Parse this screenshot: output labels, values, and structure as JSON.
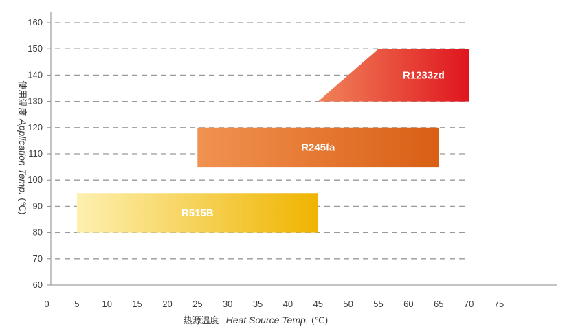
{
  "chart_data": {
    "type": "range-band",
    "xlabel_cn": "热源温度",
    "xlabel_en": "Heat Source Temp.",
    "xlabel_unit": "(℃)",
    "ylabel_cn": "使用温度",
    "ylabel_en": "Application Temp.",
    "ylabel_unit": "(℃)",
    "xlim": [
      0,
      75
    ],
    "ylim": [
      60,
      160
    ],
    "x_ticks": [
      "0",
      "5",
      "10",
      "15",
      "20",
      "25",
      "30",
      "35",
      "40",
      "45",
      "50",
      "55",
      "60",
      "65",
      "70",
      "75"
    ],
    "y_ticks": [
      "60",
      "70",
      "80",
      "90",
      "100",
      "110",
      "120",
      "130",
      "140",
      "150",
      "160"
    ],
    "grid": "horizontal dashed",
    "series": [
      {
        "name": "R1233zd",
        "polygon": [
          [
            45,
            130
          ],
          [
            55,
            150
          ],
          [
            70,
            150
          ],
          [
            70,
            130
          ]
        ],
        "colors": [
          "#f0845a",
          "#e0151e"
        ]
      },
      {
        "name": "R245fa",
        "polygon": [
          [
            25,
            105
          ],
          [
            25,
            120
          ],
          [
            65,
            120
          ],
          [
            65,
            105
          ]
        ],
        "colors": [
          "#f19251",
          "#d95f14"
        ]
      },
      {
        "name": "R515B",
        "polygon": [
          [
            5,
            80
          ],
          [
            5,
            95
          ],
          [
            45,
            95
          ],
          [
            45,
            80
          ]
        ],
        "colors": [
          "#fdf0b0",
          "#f0b400"
        ]
      }
    ]
  }
}
